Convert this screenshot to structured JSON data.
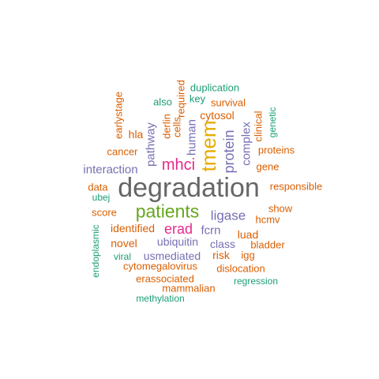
{
  "palette": {
    "gray": "#666666",
    "teal": "#1b9e77",
    "orange": "#d95f02",
    "purple": "#7570b3",
    "magenta": "#e7298a",
    "green": "#66a61e",
    "gold": "#e6ab02"
  },
  "words": [
    {
      "text": "degradation",
      "color": "gray"
    },
    {
      "text": "tmem",
      "color": "gold"
    },
    {
      "text": "patients",
      "color": "green"
    },
    {
      "text": "mhci",
      "color": "magenta"
    },
    {
      "text": "erad",
      "color": "magenta"
    },
    {
      "text": "protein",
      "color": "purple"
    },
    {
      "text": "ligase",
      "color": "purple"
    },
    {
      "text": "interaction",
      "color": "purple"
    },
    {
      "text": "human",
      "color": "purple"
    },
    {
      "text": "pathway",
      "color": "purple"
    },
    {
      "text": "complex",
      "color": "purple"
    },
    {
      "text": "ubiquitin",
      "color": "purple"
    },
    {
      "text": "usmediated",
      "color": "purple"
    },
    {
      "text": "fcrn",
      "color": "purple"
    },
    {
      "text": "class",
      "color": "purple"
    },
    {
      "text": "cytosol",
      "color": "orange"
    },
    {
      "text": "hla",
      "color": "orange"
    },
    {
      "text": "cancer",
      "color": "orange"
    },
    {
      "text": "identified",
      "color": "orange"
    },
    {
      "text": "novel",
      "color": "orange"
    },
    {
      "text": "risk",
      "color": "orange"
    },
    {
      "text": "luad",
      "color": "orange"
    },
    {
      "text": "cytomegalovirus",
      "color": "orange"
    },
    {
      "text": "erassociated",
      "color": "orange"
    },
    {
      "text": "mammalian",
      "color": "orange"
    },
    {
      "text": "dislocation",
      "color": "orange"
    },
    {
      "text": "survival",
      "color": "orange"
    },
    {
      "text": "proteins",
      "color": "orange"
    },
    {
      "text": "gene",
      "color": "orange"
    },
    {
      "text": "responsible",
      "color": "orange"
    },
    {
      "text": "data",
      "color": "orange"
    },
    {
      "text": "score",
      "color": "orange"
    },
    {
      "text": "show",
      "color": "orange"
    },
    {
      "text": "hcmv",
      "color": "orange"
    },
    {
      "text": "bladder",
      "color": "orange"
    },
    {
      "text": "igg",
      "color": "orange"
    },
    {
      "text": "derlin",
      "color": "orange"
    },
    {
      "text": "cells",
      "color": "orange"
    },
    {
      "text": "required",
      "color": "orange"
    },
    {
      "text": "earlystage",
      "color": "orange"
    },
    {
      "text": "clinical",
      "color": "orange"
    },
    {
      "text": "duplication",
      "color": "teal"
    },
    {
      "text": "key",
      "color": "teal"
    },
    {
      "text": "also",
      "color": "teal"
    },
    {
      "text": "genetic",
      "color": "teal"
    },
    {
      "text": "ubej",
      "color": "teal"
    },
    {
      "text": "endoplasmic",
      "color": "teal"
    },
    {
      "text": "viral",
      "color": "teal"
    },
    {
      "text": "regression",
      "color": "teal"
    },
    {
      "text": "methylation",
      "color": "teal"
    }
  ]
}
